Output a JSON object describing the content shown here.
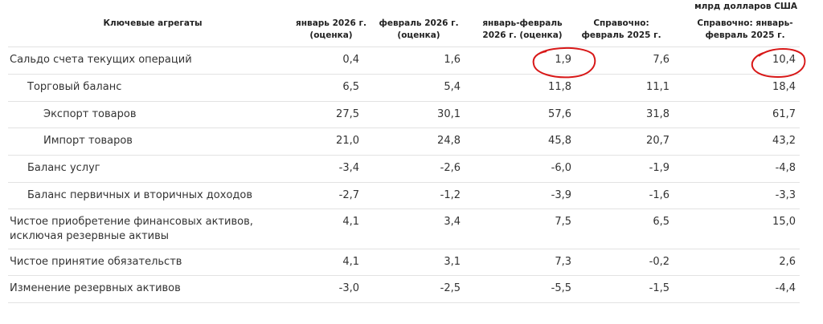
{
  "unit": "млрд долларов США",
  "table": {
    "header": [
      "Ключевые агрегаты",
      "январь 2026 г. (оценка)",
      "февраль 2026 г. (оценка)",
      "январь-февраль 2026 г. (оценка)",
      "Справочно: февраль 2025 г.",
      "Справочно: январь-февраль 2025 г."
    ],
    "rows": [
      [
        "Сальдо счета текущих операций",
        "0,4",
        "1,6",
        "1,9",
        "7,6",
        "10,4"
      ],
      [
        "Торговый баланс",
        "6,5",
        "5,4",
        "11,8",
        "11,1",
        "18,4"
      ],
      [
        "Экспорт товаров",
        "27,5",
        "30,1",
        "57,6",
        "31,8",
        "61,7"
      ],
      [
        "Импорт товаров",
        "21,0",
        "24,8",
        "45,8",
        "20,7",
        "43,2"
      ],
      [
        "Баланс услуг",
        "-3,4",
        "-2,6",
        "-6,0",
        "-1,9",
        "-4,8"
      ],
      [
        "Баланс первичных и вторичных доходов",
        "-2,7",
        "-1,2",
        "-3,9",
        "-1,6",
        "-3,3"
      ],
      [
        "Чистое приобретение финансовых активов, исключая резервные активы",
        "4,1",
        "3,4",
        "7,5",
        "6,5",
        "15,0"
      ],
      [
        "Чистое принятие обязательств",
        "4,1",
        "3,1",
        "7,3",
        "-0,2",
        "2,6"
      ],
      [
        "Изменение резервных активов",
        "-3,0",
        "-2,5",
        "-5,5",
        "-1,5",
        "-4,4"
      ]
    ]
  }
}
